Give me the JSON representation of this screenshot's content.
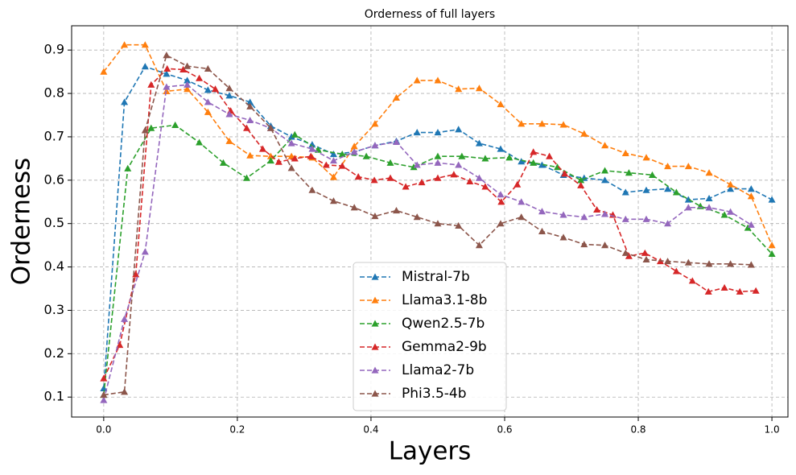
{
  "chart_data": {
    "type": "line",
    "title": "Orderness of full layers",
    "x_label": "Layers",
    "y_label": "Orderness",
    "xlim": [
      -0.048,
      1.024
    ],
    "ylim": [
      0.054,
      0.956
    ],
    "xticks": [
      {
        "value": 0,
        "label": "0.0"
      },
      0.2,
      0.4,
      0.6,
      0.8,
      {
        "value": 1,
        "label": "1.0"
      }
    ],
    "yticks": [
      0.1,
      0.2,
      0.3,
      0.4,
      0.5,
      0.6,
      0.7,
      0.8,
      0.9
    ],
    "grid": true,
    "legend": "lower center",
    "marker": "triangle",
    "line_style": "dashed",
    "series": [
      {
        "name": "Mistral-7b",
        "color": "#1f77b4",
        "x": [
          0,
          0.031,
          0.062,
          0.094,
          0.125,
          0.156,
          0.188,
          0.219,
          0.25,
          0.281,
          0.312,
          0.344,
          0.375,
          0.406,
          0.438,
          0.469,
          0.5,
          0.531,
          0.562,
          0.594,
          0.625,
          0.656,
          0.688,
          0.719,
          0.75,
          0.781,
          0.812,
          0.844,
          0.875,
          0.906,
          0.938,
          0.969,
          1.0
        ],
        "values": [
          0.12,
          0.78,
          0.862,
          0.845,
          0.83,
          0.808,
          0.795,
          0.78,
          0.725,
          0.7,
          0.682,
          0.66,
          0.665,
          0.68,
          0.69,
          0.71,
          0.71,
          0.717,
          0.685,
          0.672,
          0.643,
          0.635,
          0.612,
          0.605,
          0.6,
          0.572,
          0.577,
          0.58,
          0.555,
          0.558,
          0.58,
          0.58,
          0.555
        ]
      },
      {
        "name": "Llama3.1-8b",
        "color": "#ff7f0e",
        "x": [
          0,
          0.031,
          0.062,
          0.094,
          0.125,
          0.156,
          0.188,
          0.219,
          0.25,
          0.281,
          0.312,
          0.344,
          0.375,
          0.406,
          0.438,
          0.469,
          0.5,
          0.531,
          0.562,
          0.594,
          0.625,
          0.656,
          0.688,
          0.719,
          0.75,
          0.781,
          0.812,
          0.844,
          0.875,
          0.906,
          0.938,
          0.969,
          1.0
        ],
        "values": [
          0.85,
          0.912,
          0.912,
          0.805,
          0.81,
          0.757,
          0.69,
          0.657,
          0.655,
          0.655,
          0.652,
          0.607,
          0.678,
          0.73,
          0.79,
          0.83,
          0.83,
          0.81,
          0.812,
          0.775,
          0.73,
          0.73,
          0.728,
          0.707,
          0.68,
          0.662,
          0.652,
          0.632,
          0.632,
          0.617,
          0.59,
          0.563,
          0.45
        ]
      },
      {
        "name": "Qwen2.5-7b",
        "color": "#2ca02c",
        "x": [
          0,
          0.036,
          0.071,
          0.107,
          0.143,
          0.179,
          0.214,
          0.25,
          0.286,
          0.321,
          0.357,
          0.393,
          0.429,
          0.464,
          0.5,
          0.536,
          0.571,
          0.607,
          0.643,
          0.679,
          0.714,
          0.75,
          0.786,
          0.821,
          0.857,
          0.893,
          0.929,
          0.964,
          1.0
        ],
        "values": [
          0.105,
          0.627,
          0.72,
          0.727,
          0.687,
          0.64,
          0.605,
          0.645,
          0.705,
          0.67,
          0.66,
          0.655,
          0.64,
          0.63,
          0.655,
          0.655,
          0.65,
          0.652,
          0.64,
          0.63,
          0.6,
          0.622,
          0.617,
          0.612,
          0.572,
          0.54,
          0.52,
          0.49,
          0.43
        ]
      },
      {
        "name": "Gemma2-9b",
        "color": "#d62728",
        "x": [
          0,
          0.024,
          0.048,
          0.071,
          0.095,
          0.119,
          0.143,
          0.167,
          0.19,
          0.214,
          0.238,
          0.262,
          0.286,
          0.31,
          0.333,
          0.357,
          0.381,
          0.405,
          0.429,
          0.452,
          0.476,
          0.5,
          0.524,
          0.548,
          0.571,
          0.595,
          0.619,
          0.643,
          0.667,
          0.69,
          0.714,
          0.738,
          0.762,
          0.786,
          0.81,
          0.833,
          0.857,
          0.881,
          0.905,
          0.929,
          0.952,
          0.976
        ],
        "values": [
          0.143,
          0.22,
          0.383,
          0.82,
          0.857,
          0.855,
          0.835,
          0.81,
          0.76,
          0.72,
          0.672,
          0.642,
          0.65,
          0.655,
          0.635,
          0.633,
          0.608,
          0.6,
          0.605,
          0.585,
          0.595,
          0.605,
          0.613,
          0.597,
          0.585,
          0.55,
          0.59,
          0.665,
          0.655,
          0.615,
          0.588,
          0.532,
          0.52,
          0.425,
          0.432,
          0.413,
          0.39,
          0.368,
          0.343,
          0.352,
          0.343,
          0.345
        ]
      },
      {
        "name": "Llama2-7b",
        "color": "#9467bd",
        "x": [
          0,
          0.031,
          0.062,
          0.094,
          0.125,
          0.156,
          0.188,
          0.219,
          0.25,
          0.281,
          0.312,
          0.344,
          0.375,
          0.406,
          0.438,
          0.469,
          0.5,
          0.531,
          0.562,
          0.594,
          0.625,
          0.656,
          0.688,
          0.719,
          0.75,
          0.781,
          0.812,
          0.844,
          0.875,
          0.906,
          0.938,
          0.969
        ],
        "values": [
          0.093,
          0.28,
          0.435,
          0.815,
          0.82,
          0.78,
          0.752,
          0.738,
          0.72,
          0.685,
          0.672,
          0.645,
          0.665,
          0.68,
          0.688,
          0.635,
          0.64,
          0.635,
          0.605,
          0.567,
          0.55,
          0.528,
          0.52,
          0.515,
          0.522,
          0.51,
          0.51,
          0.5,
          0.537,
          0.537,
          0.527,
          0.497
        ]
      },
      {
        "name": "Phi3.5-4b",
        "color": "#8c564b",
        "x": [
          0,
          0.031,
          0.062,
          0.094,
          0.125,
          0.156,
          0.188,
          0.219,
          0.25,
          0.281,
          0.312,
          0.344,
          0.375,
          0.406,
          0.438,
          0.469,
          0.5,
          0.531,
          0.562,
          0.594,
          0.625,
          0.656,
          0.688,
          0.719,
          0.75,
          0.781,
          0.812,
          0.844,
          0.875,
          0.906,
          0.938,
          0.969
        ],
        "values": [
          0.105,
          0.112,
          0.715,
          0.888,
          0.863,
          0.857,
          0.812,
          0.77,
          0.72,
          0.628,
          0.577,
          0.552,
          0.537,
          0.517,
          0.53,
          0.515,
          0.5,
          0.495,
          0.45,
          0.5,
          0.515,
          0.482,
          0.468,
          0.452,
          0.45,
          0.432,
          0.417,
          0.413,
          0.41,
          0.407,
          0.407,
          0.405
        ]
      }
    ]
  }
}
